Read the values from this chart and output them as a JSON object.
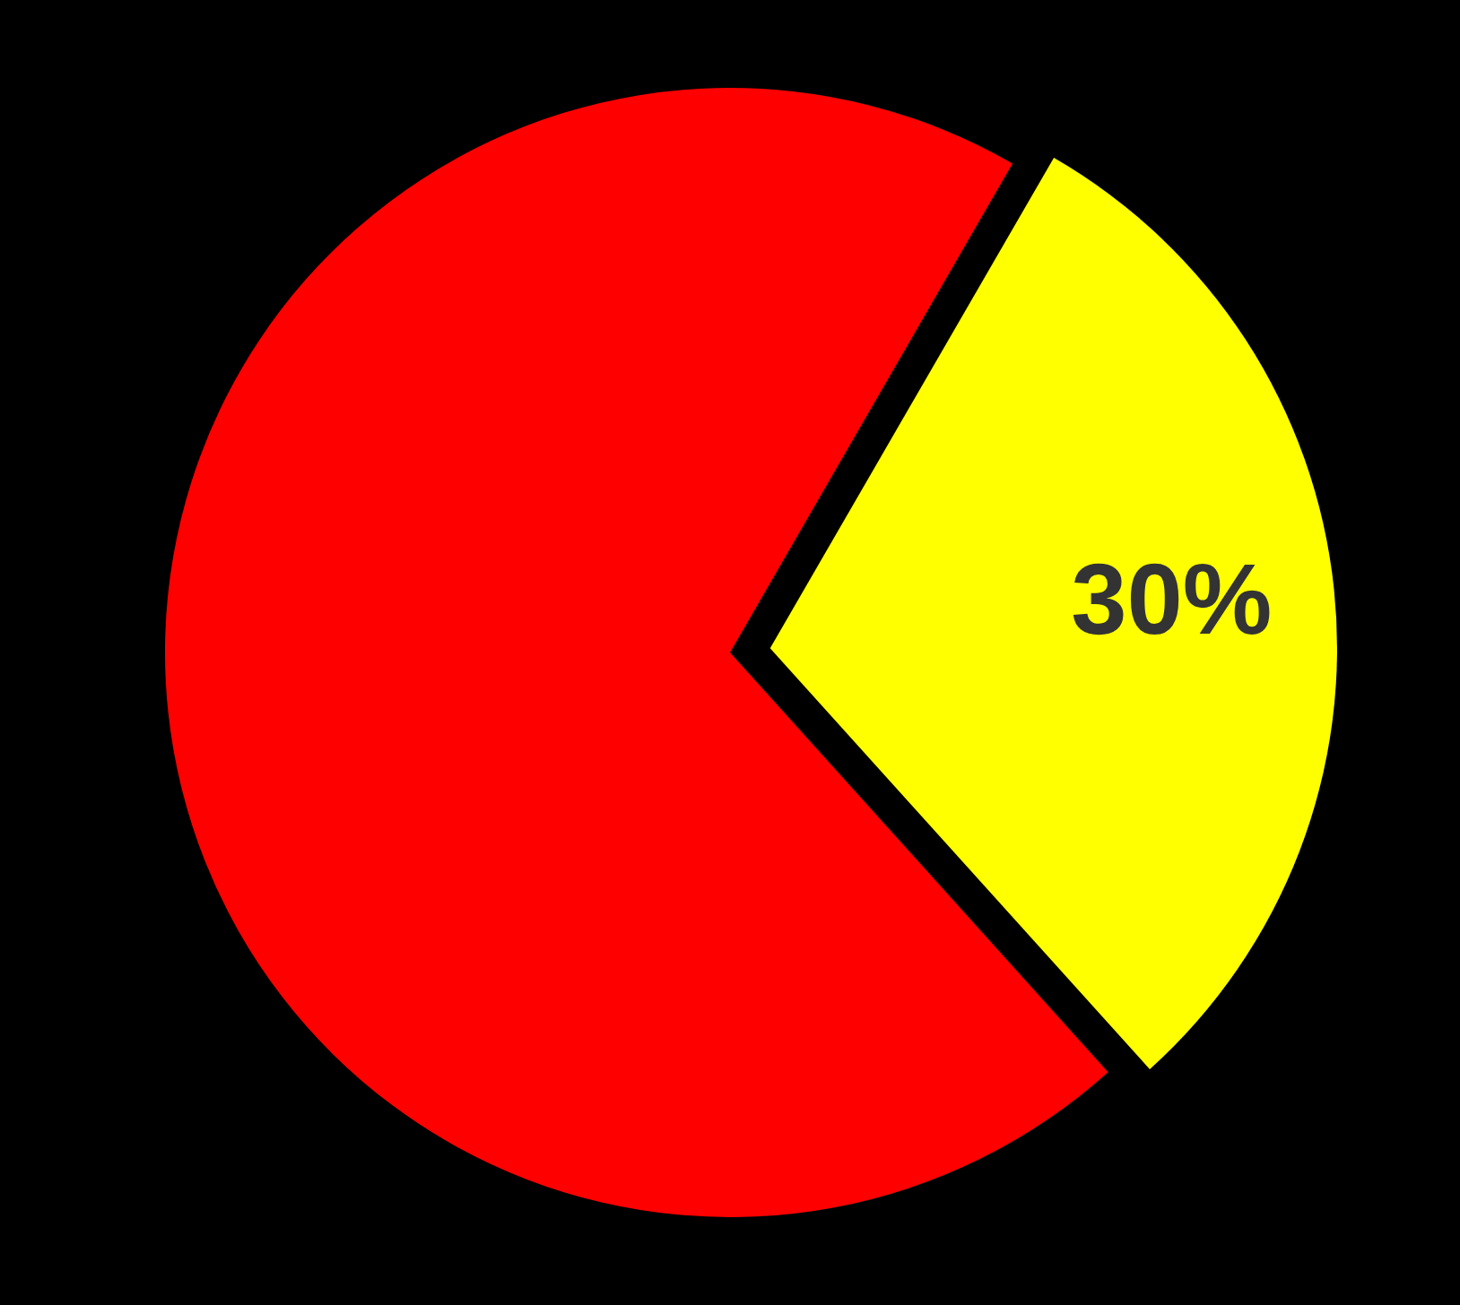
{
  "chart_data": {
    "type": "pie",
    "categories": [
      null,
      null
    ],
    "values": [
      30,
      70
    ],
    "colors": [
      "#ffff00",
      "#ff0000"
    ],
    "value_labels": [
      "30%",
      null
    ],
    "legend": false
  }
}
